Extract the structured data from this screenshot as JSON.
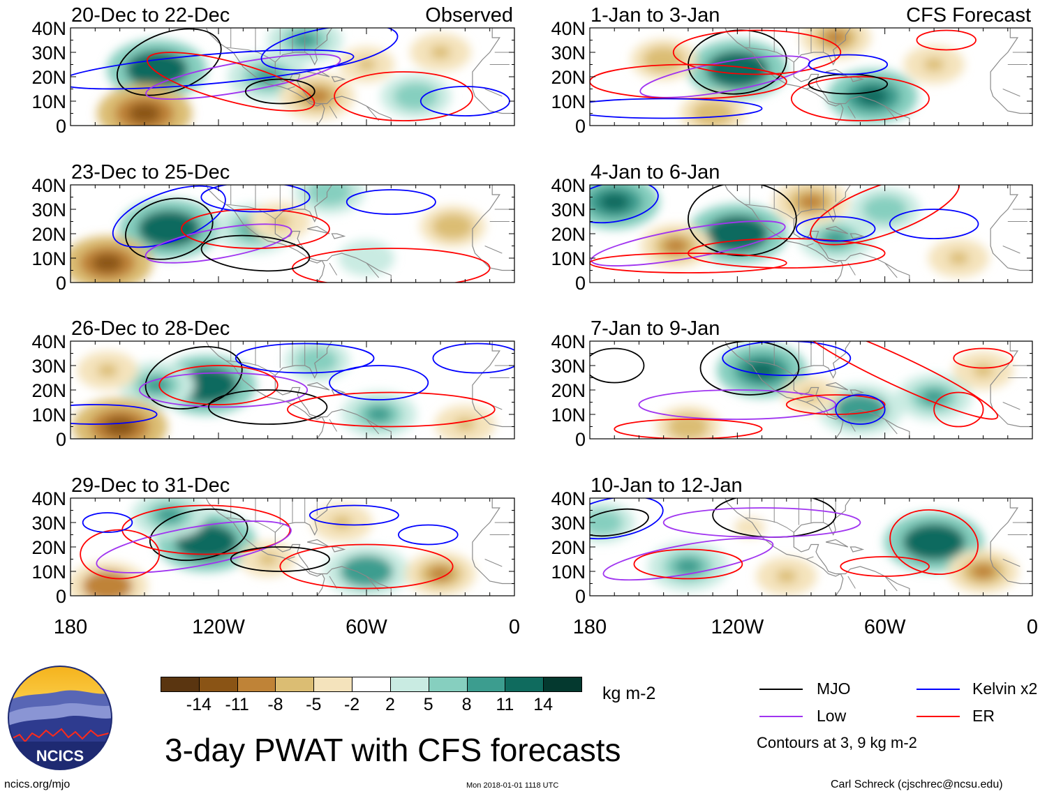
{
  "figure": {
    "title": "3-day PWAT with CFS forecasts",
    "units": "kg m-2",
    "contour_note": "Contours at 3, 9 kg m-2",
    "source_url": "ncics.org/mjo",
    "timestamp": "Mon 2018-01-01 1118 UTC",
    "credit": "Carl Schreck (cjschrec@ncsu.edu)",
    "logo_text": "NCICS"
  },
  "headers": {
    "observed": "Observed",
    "forecast": "CFS Forecast"
  },
  "axes": {
    "lat_labels": [
      "40N",
      "30N",
      "20N",
      "10N",
      "0"
    ],
    "lon_labels": [
      "180",
      "120W",
      "60W",
      "0"
    ]
  },
  "panels": [
    {
      "period": "20-Dec to 22-Dec",
      "kind": "observed"
    },
    {
      "period": "23-Dec to 25-Dec",
      "kind": "observed"
    },
    {
      "period": "26-Dec to 28-Dec",
      "kind": "observed"
    },
    {
      "period": "29-Dec to 31-Dec",
      "kind": "observed"
    },
    {
      "period": "1-Jan to 3-Jan",
      "kind": "forecast"
    },
    {
      "period": "4-Jan to 6-Jan",
      "kind": "forecast"
    },
    {
      "period": "7-Jan to 9-Jan",
      "kind": "forecast"
    },
    {
      "period": "10-Jan to 12-Jan",
      "kind": "forecast"
    }
  ],
  "colorbar": {
    "labels": [
      "-14",
      "-11",
      "-8",
      "-5",
      "-2",
      "2",
      "5",
      "8",
      "11",
      "14"
    ],
    "colors": [
      "#5a3510",
      "#8a5415",
      "#bf8337",
      "#dbbd73",
      "#f4e3bc",
      "#ffffff",
      "#c9ebe2",
      "#86cfbf",
      "#3c9d8f",
      "#0f6b5e",
      "#04392f"
    ]
  },
  "legend": [
    {
      "label": "MJO",
      "color": "#000000"
    },
    {
      "label": "Kelvin x2",
      "color": "#0000ff"
    },
    {
      "label": "Low",
      "color": "#a034f0"
    },
    {
      "label": "ER",
      "color": "#ff0000"
    }
  ],
  "colors": {
    "land": "#e4e4e4",
    "border": "#8a8a8a"
  },
  "chart_data": {
    "type": "map",
    "title": "3-day PWAT with CFS forecasts",
    "variable": "precipitable water anomaly",
    "units": "kg m-2",
    "lat_range": [
      0,
      40
    ],
    "lon_range": [
      -180,
      0
    ],
    "color_levels": [
      -14,
      -11,
      -8,
      -5,
      -2,
      2,
      5,
      8,
      11,
      14
    ],
    "contour_levels": [
      3,
      9
    ],
    "series": [
      "MJO",
      "Kelvin x2",
      "Low",
      "ER"
    ],
    "panels": [
      "20-Dec to 22-Dec",
      "23-Dec to 25-Dec",
      "26-Dec to 28-Dec",
      "29-Dec to 31-Dec",
      "1-Jan to 3-Jan",
      "4-Jan to 6-Jan",
      "7-Jan to 9-Jan",
      "10-Jan to 12-Jan"
    ],
    "anomaly_features": [
      [
        {
          "lon": -145,
          "lat": 23,
          "v": 14
        },
        {
          "lon": -100,
          "lat": 20,
          "v": 10
        },
        {
          "lon": -85,
          "lat": 35,
          "v": 9
        },
        {
          "lon": -150,
          "lat": 5,
          "v": -13
        },
        {
          "lon": -80,
          "lat": 12,
          "v": -9
        },
        {
          "lon": -40,
          "lat": 12,
          "v": 8
        },
        {
          "lon": -60,
          "lat": 25,
          "v": -5
        },
        {
          "lon": -30,
          "lat": 30,
          "v": -6
        }
      ],
      [
        {
          "lon": -140,
          "lat": 22,
          "v": 14
        },
        {
          "lon": -105,
          "lat": 22,
          "v": 10
        },
        {
          "lon": -75,
          "lat": 37,
          "v": 8
        },
        {
          "lon": -165,
          "lat": 8,
          "v": -12
        },
        {
          "lon": -95,
          "lat": 25,
          "v": -6
        },
        {
          "lon": -60,
          "lat": 10,
          "v": 5
        },
        {
          "lon": -25,
          "lat": 23,
          "v": -7
        }
      ],
      [
        {
          "lon": -125,
          "lat": 22,
          "v": 14
        },
        {
          "lon": -145,
          "lat": 22,
          "v": 9
        },
        {
          "lon": -80,
          "lat": 32,
          "v": 7
        },
        {
          "lon": -160,
          "lat": 5,
          "v": -13
        },
        {
          "lon": -55,
          "lat": 10,
          "v": 9
        },
        {
          "lon": -165,
          "lat": 28,
          "v": -6
        },
        {
          "lon": -20,
          "lat": 6,
          "v": -6
        }
      ],
      [
        {
          "lon": -125,
          "lat": 22,
          "v": 14
        },
        {
          "lon": -140,
          "lat": 33,
          "v": 9
        },
        {
          "lon": -60,
          "lat": 10,
          "v": 11
        },
        {
          "lon": -165,
          "lat": 4,
          "v": -10
        },
        {
          "lon": -70,
          "lat": 30,
          "v": -6
        },
        {
          "lon": -30,
          "lat": 9,
          "v": -8
        },
        {
          "lon": -100,
          "lat": 15,
          "v": -5
        }
      ],
      [
        {
          "lon": -120,
          "lat": 23,
          "v": 14
        },
        {
          "lon": -65,
          "lat": 12,
          "v": 12
        },
        {
          "lon": -80,
          "lat": 36,
          "v": -8
        },
        {
          "lon": -150,
          "lat": 27,
          "v": -7
        },
        {
          "lon": -130,
          "lat": 5,
          "v": -7
        },
        {
          "lon": -40,
          "lat": 25,
          "v": -6
        }
      ],
      [
        {
          "lon": -120,
          "lat": 20,
          "v": 14
        },
        {
          "lon": -170,
          "lat": 33,
          "v": 12
        },
        {
          "lon": -80,
          "lat": 18,
          "v": 9
        },
        {
          "lon": -60,
          "lat": 30,
          "v": 8
        },
        {
          "lon": -90,
          "lat": 33,
          "v": -9
        },
        {
          "lon": -145,
          "lat": 15,
          "v": -8
        },
        {
          "lon": -30,
          "lat": 10,
          "v": -6
        }
      ],
      [
        {
          "lon": -110,
          "lat": 28,
          "v": 12
        },
        {
          "lon": -70,
          "lat": 12,
          "v": 11
        },
        {
          "lon": -40,
          "lat": 17,
          "v": 9
        },
        {
          "lon": -140,
          "lat": 5,
          "v": -7
        },
        {
          "lon": -20,
          "lat": 28,
          "v": -6
        },
        {
          "lon": -90,
          "lat": 18,
          "v": -5
        }
      ],
      [
        {
          "lon": -40,
          "lat": 22,
          "v": 14
        },
        {
          "lon": -140,
          "lat": 12,
          "v": 10
        },
        {
          "lon": -175,
          "lat": 30,
          "v": 7
        },
        {
          "lon": -20,
          "lat": 10,
          "v": -8
        },
        {
          "lon": -100,
          "lat": 8,
          "v": -6
        },
        {
          "lon": -115,
          "lat": 28,
          "v": -4
        }
      ]
    ]
  }
}
